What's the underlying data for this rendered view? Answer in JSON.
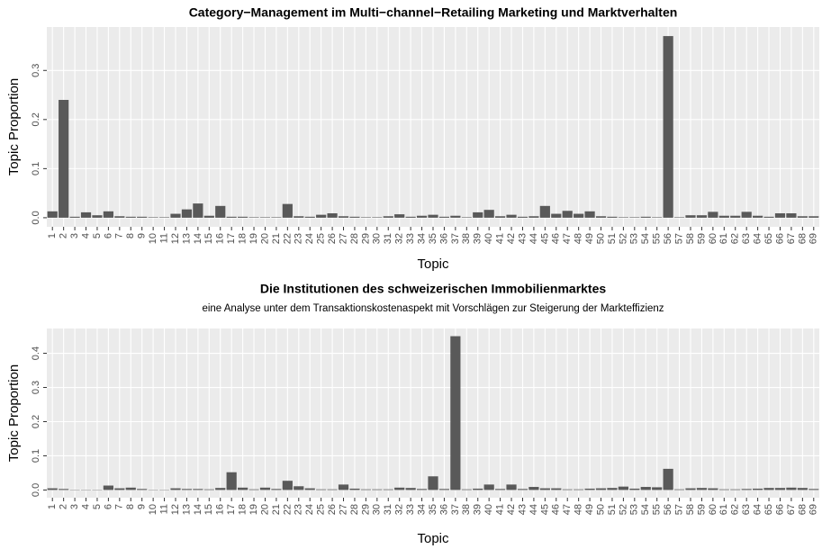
{
  "chart_data": [
    {
      "type": "bar",
      "title": "Category−Management im Multi−channel−Retailing Marketing und Marktverhalten",
      "x_label": "Topic",
      "y_label": "Topic Proportion",
      "categories": [
        "1",
        "2",
        "3",
        "4",
        "5",
        "6",
        "7",
        "8",
        "9",
        "10",
        "11",
        "12",
        "13",
        "14",
        "15",
        "16",
        "17",
        "18",
        "19",
        "20",
        "21",
        "22",
        "23",
        "24",
        "25",
        "26",
        "27",
        "28",
        "29",
        "30",
        "31",
        "32",
        "33",
        "34",
        "35",
        "36",
        "37",
        "38",
        "39",
        "40",
        "41",
        "42",
        "43",
        "44",
        "45",
        "46",
        "47",
        "48",
        "49",
        "50",
        "51",
        "52",
        "53",
        "54",
        "55",
        "56",
        "57",
        "58",
        "59",
        "60",
        "61",
        "62",
        "63",
        "64",
        "65",
        "66",
        "67",
        "68",
        "69"
      ],
      "values": [
        0.013,
        0.24,
        0.002,
        0.011,
        0.005,
        0.013,
        0.003,
        0.002,
        0.002,
        0.001,
        0.001,
        0.008,
        0.017,
        0.029,
        0.004,
        0.024,
        0.002,
        0.002,
        0.001,
        0.001,
        0.001,
        0.028,
        0.003,
        0.002,
        0.006,
        0.009,
        0.003,
        0.002,
        0.001,
        0.001,
        0.003,
        0.007,
        0.002,
        0.004,
        0.006,
        0.002,
        0.004,
        0.001,
        0.011,
        0.016,
        0.003,
        0.006,
        0.002,
        0.003,
        0.024,
        0.008,
        0.014,
        0.008,
        0.013,
        0.003,
        0.002,
        0.001,
        0.001,
        0.002,
        0.001,
        0.37,
        0.001,
        0.005,
        0.005,
        0.012,
        0.004,
        0.004,
        0.012,
        0.004,
        0.002,
        0.009,
        0.009,
        0.003,
        0.003
      ],
      "color": "#595959",
      "ylim": [
        -0.0185,
        0.3885
      ],
      "yticks": [
        {
          "value": 0,
          "label": "0.0"
        },
        0.1,
        0.2,
        0.3
      ],
      "grid": true
    },
    {
      "type": "bar",
      "title": "Die Institutionen des schweizerischen Immobilienmarktes",
      "subtitle": "eine Analyse unter dem Transaktionskostenaspekt mit Vorschlägen zur Steigerung der Markteffizienz",
      "x_label": "Topic",
      "y_label": "Topic Proportion",
      "categories": [
        "1",
        "2",
        "3",
        "4",
        "5",
        "6",
        "7",
        "8",
        "9",
        "10",
        "11",
        "12",
        "13",
        "14",
        "15",
        "16",
        "17",
        "18",
        "19",
        "20",
        "21",
        "22",
        "23",
        "24",
        "25",
        "26",
        "27",
        "28",
        "29",
        "30",
        "31",
        "32",
        "33",
        "34",
        "35",
        "36",
        "37",
        "38",
        "39",
        "40",
        "41",
        "42",
        "43",
        "44",
        "45",
        "46",
        "47",
        "48",
        "49",
        "50",
        "51",
        "52",
        "53",
        "54",
        "55",
        "56",
        "57",
        "58",
        "59",
        "60",
        "61",
        "62",
        "63",
        "64",
        "65",
        "66",
        "67",
        "68",
        "69"
      ],
      "values": [
        0.005,
        0.003,
        0.001,
        0.001,
        0.001,
        0.013,
        0.005,
        0.007,
        0.003,
        0.001,
        0.001,
        0.005,
        0.003,
        0.003,
        0.002,
        0.006,
        0.052,
        0.007,
        0.002,
        0.007,
        0.003,
        0.027,
        0.011,
        0.005,
        0.002,
        0.002,
        0.016,
        0.004,
        0.002,
        0.002,
        0.002,
        0.007,
        0.006,
        0.003,
        0.04,
        0.003,
        0.45,
        0.002,
        0.004,
        0.016,
        0.003,
        0.016,
        0.003,
        0.009,
        0.005,
        0.005,
        0.002,
        0.002,
        0.004,
        0.005,
        0.006,
        0.01,
        0.004,
        0.009,
        0.008,
        0.062,
        0.002,
        0.005,
        0.006,
        0.005,
        0.002,
        0.002,
        0.003,
        0.004,
        0.006,
        0.006,
        0.007,
        0.006,
        0.003
      ],
      "color": "#595959",
      "ylim": [
        -0.0225,
        0.4725
      ],
      "yticks": [
        {
          "value": 0,
          "label": "0.0"
        },
        0.1,
        0.2,
        0.3,
        0.4
      ],
      "grid": true
    }
  ]
}
